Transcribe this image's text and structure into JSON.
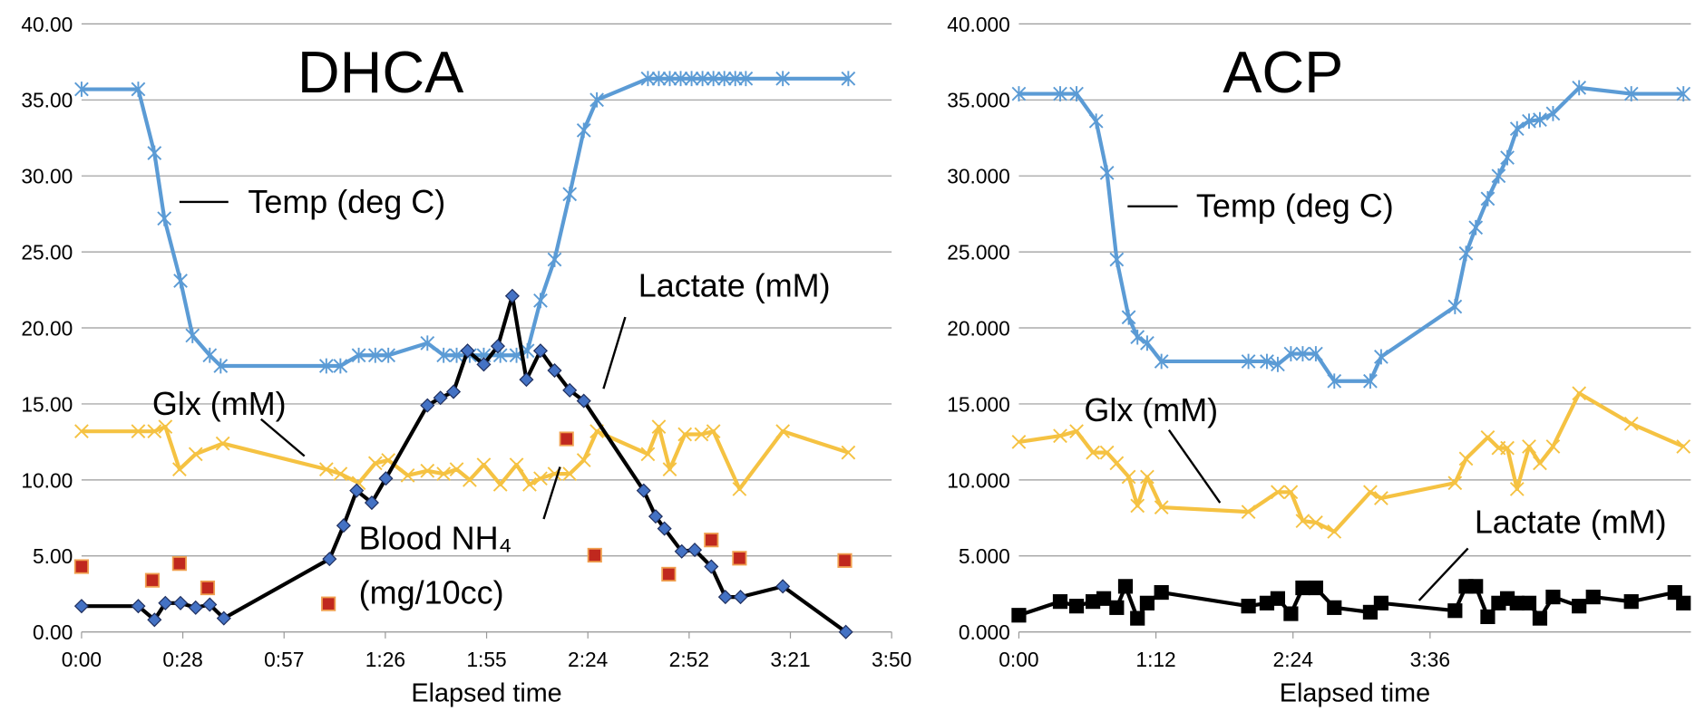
{
  "chart_data": [
    {
      "type": "line",
      "title": "DHCA",
      "xlabel": "Elapsed time",
      "xlim": [
        0,
        230
      ],
      "xticks": [
        {
          "value": 0,
          "label": "0:00"
        },
        {
          "value": 28.75,
          "label": "0:28"
        },
        {
          "value": 57.5,
          "label": "0:57"
        },
        {
          "value": 86.25,
          "label": "1:26"
        },
        {
          "value": 115,
          "label": "1:55"
        },
        {
          "value": 143.75,
          "label": "2:24"
        },
        {
          "value": 172.5,
          "label": "2:52"
        },
        {
          "value": 201.25,
          "label": "3:21"
        },
        {
          "value": 230,
          "label": "3:50"
        }
      ],
      "ylim": [
        0,
        40
      ],
      "yticks": [
        {
          "value": 0,
          "label": "0.00"
        },
        {
          "value": 5,
          "label": "5.00"
        },
        {
          "value": 10,
          "label": "10.00"
        },
        {
          "value": 15,
          "label": "15.00"
        },
        {
          "value": 20,
          "label": "20.00"
        },
        {
          "value": 25,
          "label": "25.00"
        },
        {
          "value": 30,
          "label": "30.00"
        },
        {
          "value": 35,
          "label": "35.00"
        },
        {
          "value": 40,
          "label": "40.00"
        }
      ],
      "grid": true,
      "series": [
        {
          "name": "Temp (deg C)",
          "color": "#5b9bd5",
          "marker": "star",
          "marker_color": "#5b9bd5",
          "x": [
            0,
            16.1,
            20.7,
            23.5,
            28.1,
            31.5,
            36.4,
            39.5,
            69.5,
            73.5,
            78.7,
            83.4,
            87.1,
            98.2,
            102.8,
            106.5,
            110.2,
            114.2,
            118.9,
            123.5,
            126.6,
            130.3,
            134.3,
            138.6,
            142.6,
            146.3,
            160.8,
            163.9,
            167,
            170.1,
            173.2,
            176.3,
            179.4,
            182.5,
            185.6,
            188.6,
            199.1,
            217.7
          ],
          "values": [
            35.7,
            35.7,
            31.5,
            27.2,
            23.1,
            19.5,
            18.2,
            17.5,
            17.5,
            17.5,
            18.2,
            18.2,
            18.2,
            19.0,
            18.2,
            18.2,
            18.2,
            18.2,
            18.2,
            18.2,
            18.5,
            21.8,
            24.5,
            28.8,
            33.0,
            35.0,
            36.4,
            36.4,
            36.4,
            36.4,
            36.4,
            36.4,
            36.4,
            36.4,
            36.4,
            36.4,
            36.4,
            36.4
          ]
        },
        {
          "name": "Glx (mM)",
          "color": "#f5c242",
          "marker": "x",
          "marker_color": "#f5c242",
          "x": [
            0,
            16.1,
            20.7,
            23.8,
            27.8,
            32.4,
            40.1,
            69.5,
            73.5,
            78.7,
            83.4,
            87.1,
            92.6,
            98.2,
            102.8,
            106.5,
            110.2,
            114.2,
            118.9,
            123.5,
            127.2,
            130.3,
            134.3,
            138.6,
            142.6,
            146.3,
            160.8,
            163.9,
            167,
            171.3,
            176,
            179.4,
            186.8,
            199.1,
            217.7
          ],
          "values": [
            13.2,
            13.2,
            13.2,
            13.5,
            10.7,
            11.7,
            12.4,
            10.7,
            10.4,
            9.8,
            11.1,
            11.3,
            10.3,
            10.6,
            10.4,
            10.7,
            10.0,
            11.0,
            9.7,
            11.0,
            9.7,
            10.1,
            10.4,
            10.4,
            11.3,
            13.2,
            11.7,
            13.5,
            10.7,
            13.0,
            13.0,
            13.2,
            9.4,
            13.2,
            11.8
          ]
        },
        {
          "name": "Lactate (mM)",
          "color": "#000000",
          "marker": "diamond",
          "marker_color": "#4472c4",
          "x": [
            0,
            16.1,
            20.7,
            23.8,
            28.1,
            32.4,
            36.4,
            40.4,
            70.4,
            74.4,
            78.1,
            82.4,
            86.4,
            98.2,
            101.9,
            105.6,
            109.6,
            114.2,
            118.2,
            122.3,
            126.3,
            130.3,
            134.3,
            138.6,
            142.6,
            159.6,
            163,
            165.5,
            170.4,
            174.1,
            178.8,
            182.8,
            187.1,
            199.1,
            217
          ],
          "values": [
            1.7,
            1.7,
            0.8,
            1.9,
            1.9,
            1.6,
            1.8,
            0.9,
            4.8,
            7.0,
            9.3,
            8.5,
            10.1,
            14.9,
            15.4,
            15.8,
            18.5,
            17.6,
            18.8,
            22.1,
            16.6,
            18.5,
            17.2,
            15.9,
            15.2,
            9.3,
            7.6,
            6.8,
            5.3,
            5.4,
            4.3,
            2.3,
            2.3,
            3.0,
            0
          ]
        },
        {
          "name": "Blood NH₄ (mg/10cc)",
          "color": "#c0281e",
          "marker": "square",
          "marker_color": "#c0281e",
          "mode": "markers",
          "x": [
            0,
            20.1,
            27.8,
            35.8,
            70.1,
            137.7,
            145.7,
            166.7,
            178.8,
            186.8,
            216.7
          ],
          "values": [
            4.3,
            3.4,
            4.5,
            2.9,
            1.85,
            12.7,
            5.05,
            3.8,
            6.05,
            4.85,
            4.7
          ]
        }
      ]
    },
    {
      "type": "line",
      "title": "ACP",
      "xlabel": "Elapsed time",
      "xlim": [
        0,
        353
      ],
      "xticks": [
        {
          "value": 0,
          "label": "0:00"
        },
        {
          "value": 72,
          "label": "1:12"
        },
        {
          "value": 144,
          "label": "2:24"
        },
        {
          "value": 216,
          "label": "3:36"
        }
      ],
      "ylim": [
        0,
        40
      ],
      "yticks": [
        {
          "value": 0,
          "label": "0.000"
        },
        {
          "value": 5,
          "label": "5.000"
        },
        {
          "value": 10,
          "label": "10.000"
        },
        {
          "value": 15,
          "label": "15.000"
        },
        {
          "value": 20,
          "label": "20.000"
        },
        {
          "value": 25,
          "label": "25.000"
        },
        {
          "value": 30,
          "label": "30.000"
        },
        {
          "value": 35,
          "label": "35.000"
        },
        {
          "value": 40,
          "label": "40.000"
        }
      ],
      "grid": true,
      "series": [
        {
          "name": "Temp (deg C)",
          "color": "#5b9bd5",
          "marker": "star",
          "marker_color": "#5b9bd5",
          "x": [
            0,
            21.7,
            30.3,
            40.6,
            46.3,
            51.4,
            57.7,
            62.3,
            67.4,
            74.9,
            120.6,
            130.3,
            136,
            142.9,
            149.1,
            156,
            165.7,
            184.6,
            190.3,
            229.1,
            234.9,
            240,
            246.3,
            252,
            256.6,
            261.7,
            268,
            273.7,
            280.6,
            294.3,
            321.7,
            349.1
          ],
          "values": [
            35.4,
            35.4,
            35.4,
            33.6,
            30.2,
            24.5,
            20.7,
            19.4,
            19.0,
            17.8,
            17.8,
            17.8,
            17.6,
            18.3,
            18.3,
            18.3,
            16.5,
            16.5,
            18.1,
            21.4,
            24.9,
            26.6,
            28.5,
            30.0,
            31.2,
            33.1,
            33.6,
            33.7,
            34.1,
            35.8,
            35.4,
            35.4
          ]
        },
        {
          "name": "Glx (mM)",
          "color": "#f5c242",
          "marker": "x",
          "marker_color": "#f5c242",
          "x": [
            0,
            21.7,
            30.3,
            38.9,
            46.3,
            51.4,
            57.7,
            62.3,
            67.4,
            74.9,
            120.6,
            136,
            142.9,
            149.1,
            156,
            165.7,
            184.6,
            190.3,
            229.1,
            234.9,
            246.3,
            252,
            256.6,
            261.7,
            268,
            273.7,
            280.6,
            294.3,
            321.7,
            349.1
          ],
          "values": [
            12.5,
            12.9,
            13.2,
            11.8,
            11.8,
            11.1,
            10.2,
            8.3,
            10.2,
            8.2,
            7.9,
            9.2,
            9.2,
            7.3,
            7.2,
            6.6,
            9.2,
            8.8,
            9.8,
            11.4,
            12.8,
            12.1,
            12.1,
            9.4,
            12.2,
            11.1,
            12.2,
            15.7,
            13.7,
            12.2
          ]
        },
        {
          "name": "Lactate (mM)",
          "color": "#000000",
          "marker": "square",
          "marker_color": "#000000",
          "x": [
            0,
            21.7,
            30.3,
            38.9,
            44.6,
            51.4,
            56,
            62.3,
            67.4,
            74.9,
            120.6,
            130.3,
            136,
            142.9,
            149.1,
            156,
            165.7,
            184.6,
            190.3,
            229.1,
            234.9,
            240,
            246.3,
            252,
            256.6,
            261.7,
            268,
            273.7,
            280.6,
            294.3,
            301.7,
            321.7,
            344.6,
            349.1
          ],
          "values": [
            1.1,
            2.0,
            1.7,
            2.0,
            2.2,
            1.6,
            3.0,
            0.9,
            1.9,
            2.6,
            1.7,
            1.9,
            2.2,
            1.2,
            2.9,
            2.9,
            1.6,
            1.3,
            1.9,
            1.4,
            3.0,
            3.0,
            1.0,
            1.9,
            2.2,
            1.9,
            1.9,
            0.9,
            2.3,
            1.7,
            2.3,
            2.0,
            2.6,
            1.9
          ]
        }
      ]
    }
  ]
}
